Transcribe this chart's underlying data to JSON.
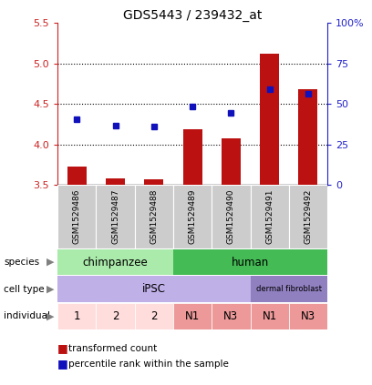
{
  "title": "GDS5443 / 239432_at",
  "samples": [
    "GSM1529486",
    "GSM1529487",
    "GSM1529488",
    "GSM1529489",
    "GSM1529490",
    "GSM1529491",
    "GSM1529492"
  ],
  "red_values": [
    3.72,
    3.58,
    3.57,
    4.19,
    4.07,
    5.12,
    4.68
  ],
  "blue_values": [
    4.31,
    4.23,
    4.22,
    4.47,
    4.39,
    4.68,
    4.63
  ],
  "ylim": [
    3.5,
    5.5
  ],
  "y2lim": [
    0,
    100
  ],
  "yticks": [
    3.5,
    4.0,
    4.5,
    5.0,
    5.5
  ],
  "y2ticks": [
    0,
    25,
    50,
    75,
    100
  ],
  "y2ticklabels": [
    "0",
    "25",
    "50",
    "75",
    "100%"
  ],
  "species_colors": {
    "chimpanzee": "#AAEAAA",
    "human": "#44BB55"
  },
  "cell_type_colors": {
    "iPSC": "#C0B0E8",
    "dermal fibroblast": "#9080C0"
  },
  "individual_colors": [
    "#FFDDDD",
    "#FFDDDD",
    "#FFDDDD",
    "#EE9999",
    "#EE9999",
    "#EE9999",
    "#EE9999"
  ],
  "bar_color": "#BB1111",
  "dot_color": "#1111BB",
  "sample_box_color": "#CCCCCC",
  "label_color_red": "#CC2222",
  "label_color_blue": "#2222CC",
  "bar_width": 0.5,
  "dot_size": 5
}
